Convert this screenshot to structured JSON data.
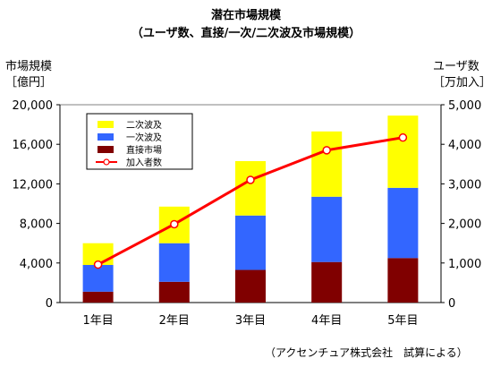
{
  "chart_data": {
    "type": "bar",
    "title": "潜在市場規模",
    "subtitle": "（ユーザ数、直接/一次/二次波及市場規模）",
    "ylabel_left": [
      "市場規模",
      "［億円］"
    ],
    "ylabel_right": [
      "ユーザ数",
      "［万加入］"
    ],
    "categories": [
      "1年目",
      "2年目",
      "3年目",
      "4年目",
      "5年目"
    ],
    "ylim_left": [
      0,
      20000
    ],
    "yticks_left": [
      "0",
      "4,000",
      "8,000",
      "12,000",
      "16,000",
      "20,000"
    ],
    "ylim_right": [
      0,
      5000
    ],
    "yticks_right": [
      "0",
      "1,000",
      "2,000",
      "3,000",
      "4,000",
      "5,000"
    ],
    "stacked": true,
    "series": [
      {
        "name": "直接市場",
        "axis": "left",
        "color": "#800000",
        "values": [
          1100,
          2100,
          3300,
          4100,
          4500
        ]
      },
      {
        "name": "一次波及",
        "axis": "left",
        "color": "#3366ff",
        "values": [
          2700,
          3900,
          5500,
          6600,
          7100
        ]
      },
      {
        "name": "二次波及",
        "axis": "left",
        "color": "#ffff00",
        "values": [
          2200,
          3700,
          5500,
          6600,
          7300
        ]
      },
      {
        "name": "加入者数",
        "axis": "right",
        "type": "line",
        "color": "#ff0000",
        "values": [
          960,
          1980,
          3100,
          3850,
          4170
        ]
      }
    ],
    "legend": {
      "position": "top-left",
      "order": [
        "二次波及",
        "一次波及",
        "直接市場",
        "加入者数"
      ]
    },
    "grid": false
  },
  "source_note": "（アクセンチュア株式会社　試算による）"
}
